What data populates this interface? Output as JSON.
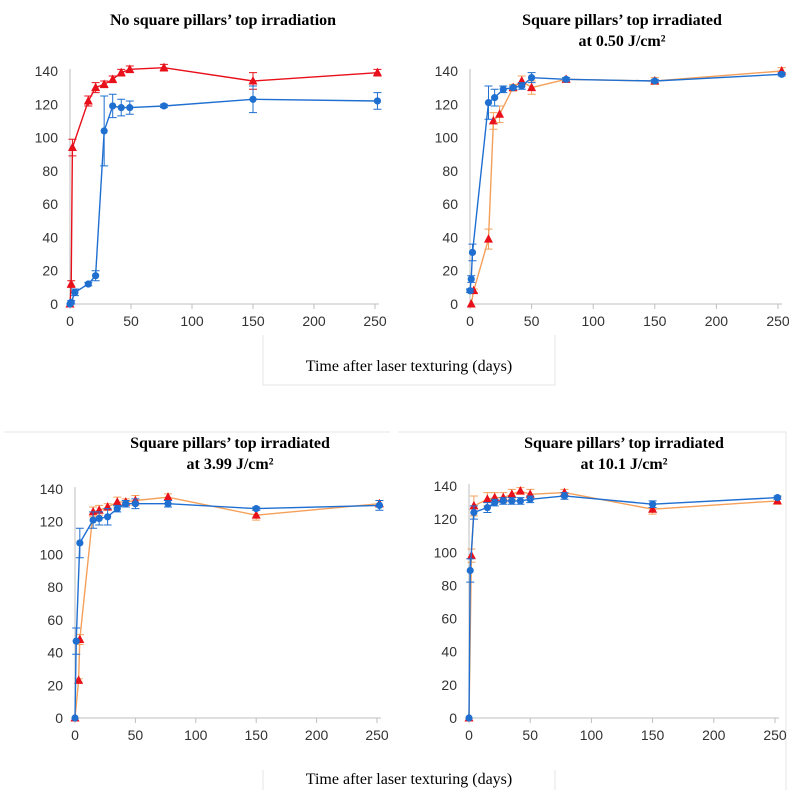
{
  "xlabel_top": "Time after laser texturing (days)",
  "xlabel_bottom": "Time after laser texturing (days)",
  "colors": {
    "blue": "#1f6fd1",
    "red": "#e8101a",
    "orange": "#f5a05a",
    "axis": "#bfbfbf"
  },
  "chart_data": [
    {
      "type": "line",
      "title_lines": [
        "No square pillars’ top irradiation"
      ],
      "ylim": [
        0,
        140
      ],
      "xlim": [
        0,
        250
      ],
      "yticks": [
        0,
        20,
        40,
        60,
        80,
        100,
        120,
        140
      ],
      "xticks": [
        0,
        50,
        100,
        150,
        200,
        250
      ],
      "series": [
        {
          "color": "#e8101a",
          "marker": "triangle",
          "x": [
            0,
            1,
            2,
            15,
            21,
            28,
            35,
            42,
            49,
            77,
            150,
            252
          ],
          "y": [
            0,
            12,
            94,
            122,
            130,
            132,
            135,
            139,
            141,
            142,
            134,
            139
          ],
          "err": [
            0,
            2,
            5,
            3,
            3,
            2,
            2,
            2,
            2,
            2,
            5,
            2
          ]
        },
        {
          "color": "#1f6fd1",
          "marker": "circle",
          "x": [
            0,
            1,
            4,
            15,
            21,
            28,
            35,
            42,
            49,
            77,
            150,
            252
          ],
          "y": [
            0,
            1,
            7,
            12,
            17,
            104,
            119,
            118,
            118,
            119,
            123,
            122
          ],
          "err": [
            0,
            1,
            2,
            1,
            3,
            21,
            7,
            5,
            4,
            1,
            8,
            5
          ]
        }
      ]
    },
    {
      "type": "line",
      "title_lines": [
        "Square pillars’ top irradiated",
        "at 0.50 J/cm²"
      ],
      "ylim": [
        0,
        140
      ],
      "xlim": [
        0,
        250
      ],
      "yticks": [
        0,
        20,
        40,
        60,
        80,
        100,
        120,
        140
      ],
      "xticks": [
        0,
        50,
        100,
        150,
        200,
        250
      ],
      "series": [
        {
          "color": "#f5a05a",
          "marker": "triangle",
          "x": [
            1,
            3,
            15,
            19,
            24,
            35,
            42,
            50,
            78,
            150,
            253
          ],
          "y": [
            0,
            8,
            39,
            110,
            114,
            130,
            134,
            130,
            135,
            134,
            140
          ],
          "err": [
            0,
            1,
            6,
            5,
            5,
            2,
            3,
            4,
            1,
            2,
            2
          ]
        },
        {
          "color": "#1f6fd1",
          "marker": "circle",
          "x": [
            0,
            1,
            2,
            15,
            20,
            27,
            35,
            42,
            50,
            78,
            150,
            253
          ],
          "y": [
            8,
            15,
            31,
            121,
            124,
            129,
            130,
            131,
            136,
            135,
            134,
            138
          ],
          "err": [
            1,
            2,
            5,
            10,
            5,
            2,
            1,
            2,
            3,
            1,
            1,
            1
          ]
        }
      ]
    },
    {
      "type": "line",
      "title_lines": [
        "Square pillars’ top irradiated",
        "at 3.99 J/cm²"
      ],
      "ylim": [
        0,
        140
      ],
      "xlim": [
        0,
        250
      ],
      "yticks": [
        0,
        20,
        40,
        60,
        80,
        100,
        120,
        140
      ],
      "xticks": [
        0,
        50,
        100,
        150,
        200,
        250
      ],
      "series": [
        {
          "color": "#f5a05a",
          "marker": "triangle",
          "x": [
            0,
            3,
            4,
            15,
            20,
            27,
            35,
            42,
            50,
            77,
            150,
            252
          ],
          "y": [
            0,
            23,
            48,
            126,
            127,
            129,
            132,
            132,
            133,
            135,
            124,
            131
          ],
          "err": [
            0,
            1,
            3,
            3,
            3,
            2,
            3,
            2,
            3,
            2,
            3,
            2
          ]
        },
        {
          "color": "#1f6fd1",
          "marker": "circle",
          "x": [
            0,
            1,
            4,
            15,
            20,
            27,
            35,
            42,
            50,
            77,
            150,
            252
          ],
          "y": [
            0,
            47,
            107,
            121,
            122,
            123,
            128,
            131,
            131,
            131,
            128,
            130
          ],
          "err": [
            0,
            8,
            9,
            5,
            4,
            5,
            2,
            2,
            3,
            2,
            1,
            3
          ]
        }
      ]
    },
    {
      "type": "line",
      "title_lines": [
        "Square pillars’ top irradiated",
        "at 10.1 J/cm²"
      ],
      "ylim": [
        0,
        140
      ],
      "xlim": [
        0,
        250
      ],
      "yticks": [
        0,
        20,
        40,
        60,
        80,
        100,
        120,
        140
      ],
      "xticks": [
        0,
        50,
        100,
        150,
        200,
        250
      ],
      "series": [
        {
          "color": "#f5a05a",
          "marker": "triangle",
          "x": [
            0,
            2,
            4,
            15,
            21,
            28,
            35,
            42,
            50,
            78,
            150,
            252
          ],
          "y": [
            0,
            98,
            128,
            132,
            133,
            133,
            135,
            137,
            135,
            136,
            126,
            131
          ],
          "err": [
            0,
            4,
            6,
            4,
            3,
            3,
            3,
            2,
            3,
            2,
            3,
            2
          ]
        },
        {
          "color": "#1f6fd1",
          "marker": "circle",
          "x": [
            0,
            1,
            4,
            15,
            21,
            28,
            35,
            42,
            50,
            78,
            150,
            252
          ],
          "y": [
            0,
            89,
            124,
            127,
            130,
            131,
            131,
            131,
            132,
            134,
            129,
            133
          ],
          "err": [
            0,
            7,
            4,
            3,
            2,
            2,
            2,
            2,
            2,
            2,
            2,
            1
          ]
        }
      ]
    }
  ]
}
